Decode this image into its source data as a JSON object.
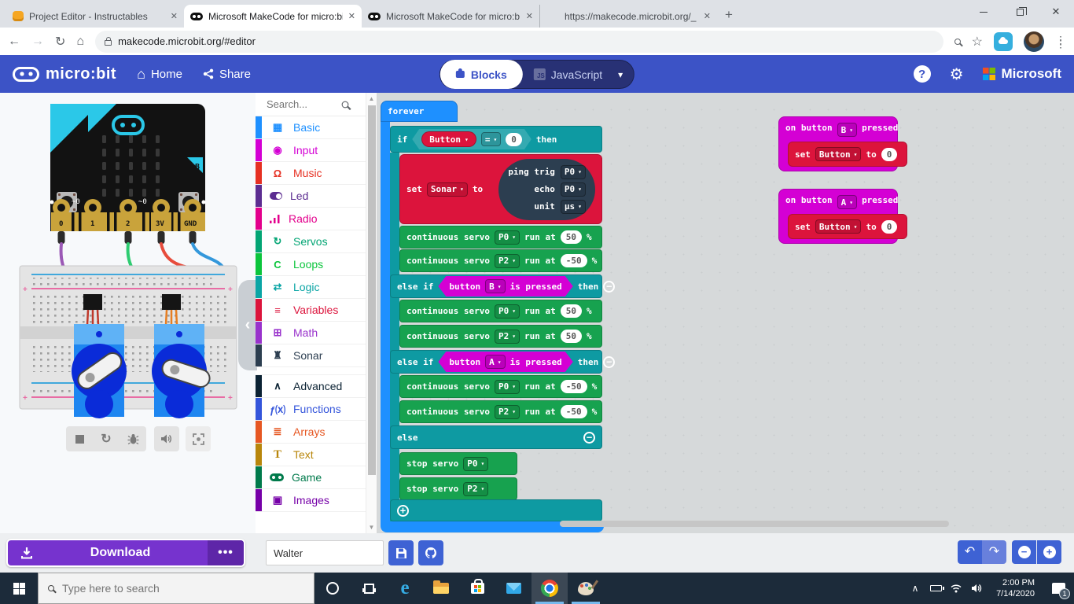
{
  "colors": {
    "header_blue": "#3C53C6",
    "toggle_navy": "#283175",
    "accent_blue": "#3E62D4",
    "accent_blue_light": "#6880DC",
    "download_purple": "#7633CE",
    "download_dark": "#5E26A8",
    "block_basic": "#1E90FF",
    "block_logic": "#0E9AA2",
    "block_variables": "#DC143C",
    "block_servo": "#17A24F",
    "block_input": "#D400D4",
    "block_sonar": "#2C3E50",
    "taskbar_bg": "#1C2B3A",
    "chrome_strip": "#DEE1E6",
    "workspace_bg": "#ECEEEF",
    "ms_red": "#F25022",
    "ms_green": "#7FBA00",
    "ms_blue": "#00A4EF",
    "ms_yellow": "#FFB900"
  },
  "browser": {
    "tabs": [
      {
        "title": "Project Editor - Instructables",
        "icon": "instructables-robot",
        "active": false
      },
      {
        "title": "Microsoft MakeCode for micro:bi",
        "icon": "microbit-face",
        "active": true
      },
      {
        "title": "Microsoft MakeCode for micro:b",
        "icon": "microbit-face",
        "active": false
      },
      {
        "title": "https://makecode.microbit.org/_",
        "icon": "gmail-m",
        "active": false
      }
    ],
    "new_tab": "+",
    "url": "makecode.microbit.org/#editor"
  },
  "header": {
    "brand": "micro:bit",
    "home": "Home",
    "share": "Share",
    "blocks": "Blocks",
    "javascript": "JavaScript",
    "js_badge": "JS",
    "help": "?",
    "microsoft": "Microsoft"
  },
  "toolbox": {
    "search_placeholder": "Search...",
    "categories": [
      {
        "label": "Basic",
        "color": "#1E90FF",
        "icon": "basic-grid",
        "glyph": "▦"
      },
      {
        "label": "Input",
        "color": "#D400D4",
        "icon": "input-dot",
        "glyph": "◉"
      },
      {
        "label": "Music",
        "color": "#E63022",
        "icon": "music-headphones",
        "glyph": "Ω"
      },
      {
        "label": "Led",
        "color": "#5C2D91",
        "icon": "led-toggle",
        "glyph": ""
      },
      {
        "label": "Radio",
        "color": "#E3008C",
        "icon": "radio-signal",
        "glyph": ""
      },
      {
        "label": "Servos",
        "color": "#03A574",
        "icon": "servos-cycle",
        "glyph": "↻"
      },
      {
        "label": "Loops",
        "color": "#0BC53C",
        "icon": "loops-arrow",
        "glyph": "C"
      },
      {
        "label": "Logic",
        "color": "#0AA5A5",
        "icon": "logic-shuffle",
        "glyph": "⇄"
      },
      {
        "label": "Variables",
        "color": "#DC143C",
        "icon": "variables-lines",
        "glyph": "≡"
      },
      {
        "label": "Math",
        "color": "#9932CC",
        "icon": "math-calculator",
        "glyph": "⊞"
      },
      {
        "label": "Sonar",
        "color": "#2C3E50",
        "icon": "sonar-robot",
        "glyph": "♜"
      },
      {
        "label": "Advanced",
        "color": "#0B2233",
        "icon": "advanced-chevron",
        "glyph": "∧",
        "gap_before": true
      },
      {
        "label": "Functions",
        "color": "#3455DB",
        "icon": "functions-fx",
        "glyph": "ƒ⒳"
      },
      {
        "label": "Arrays",
        "color": "#E65722",
        "icon": "arrays-list",
        "glyph": "≣"
      },
      {
        "label": "Text",
        "color": "#B8860B",
        "icon": "text-T",
        "glyph": "T"
      },
      {
        "label": "Game",
        "color": "#007A4B",
        "icon": "game-gamepad",
        "glyph": ""
      },
      {
        "label": "Images",
        "color": "#7600A8",
        "icon": "images-picture",
        "glyph": "▣"
      }
    ]
  },
  "workspace": {
    "forever": "forever",
    "if": {
      "kw_if": "if",
      "kw_then": "then",
      "kw_elseif": "else if",
      "kw_else": "else",
      "cond_var": "Button",
      "cond_op": "=",
      "cond_val": "0",
      "elseif1": {
        "pre": "button",
        "btn": "B",
        "post": "is pressed"
      },
      "elseif2": {
        "pre": "button",
        "btn": "A",
        "post": "is pressed"
      }
    },
    "set_sonar": {
      "set": "set",
      "var": "Sonar",
      "to": "to",
      "ping": "ping trig",
      "ping_pin": "P0",
      "echo": "echo",
      "echo_pin": "P0",
      "unit": "unit",
      "unit_val": "μs"
    },
    "servo_rows": [
      {
        "label": "continuous servo",
        "pin": "P0",
        "run": "run at",
        "val": "50",
        "pct": "%"
      },
      {
        "label": "continuous servo",
        "pin": "P2",
        "run": "run at",
        "val": "-50",
        "pct": "%"
      },
      {
        "label": "continuous servo",
        "pin": "P0",
        "run": "run at",
        "val": "50",
        "pct": "%"
      },
      {
        "label": "continuous servo",
        "pin": "P2",
        "run": "run at",
        "val": "50",
        "pct": "%"
      },
      {
        "label": "continuous servo",
        "pin": "P0",
        "run": "run at",
        "val": "-50",
        "pct": "%"
      },
      {
        "label": "continuous servo",
        "pin": "P2",
        "run": "run at",
        "val": "-50",
        "pct": "%"
      }
    ],
    "stop_rows": [
      {
        "label": "stop servo",
        "pin": "P0"
      },
      {
        "label": "stop servo",
        "pin": "P2"
      }
    ],
    "on_button": [
      {
        "pre": "on button",
        "btn": "B",
        "post": "pressed",
        "set": "set",
        "var": "Button",
        "to": "to",
        "val": "0"
      },
      {
        "pre": "on button",
        "btn": "A",
        "post": "pressed",
        "set": "set",
        "var": "Button",
        "to": "to",
        "val": "0"
      }
    ]
  },
  "simulator": {
    "pin_labels": [
      "0",
      "1",
      "2",
      "3V",
      "GND"
    ],
    "analog_label_p0": "~0",
    "analog_label_p2": "~0",
    "button_a": "A",
    "button_b": "B",
    "controls": [
      "stop",
      "restart",
      "debug",
      "mute",
      "fullscreen"
    ]
  },
  "bottombar": {
    "download": "Download",
    "project_name": "Walter"
  },
  "taskbar": {
    "search_placeholder": "Type here to search",
    "time": "2:00 PM",
    "date": "7/14/2020",
    "notification_count": "1"
  }
}
